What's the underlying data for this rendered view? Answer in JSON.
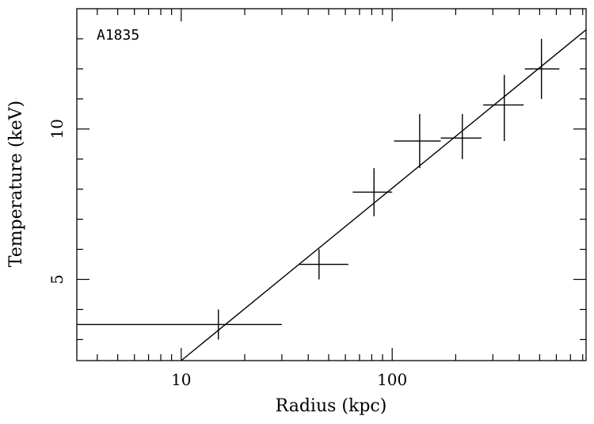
{
  "chart_data": {
    "type": "scatter",
    "annotation": "A1835",
    "xlabel": "Radius (kpc)",
    "ylabel": "Temperature (keV)",
    "xscale": "log",
    "yscale": "linear",
    "xlim": [
      3.2,
      830
    ],
    "ylim": [
      2.3,
      14.0
    ],
    "grid": false,
    "x_tick_labels": [
      {
        "value": 10,
        "label": "10"
      },
      {
        "value": 100,
        "label": "100"
      }
    ],
    "y_tick_labels": [
      {
        "value": 5,
        "label": "5"
      },
      {
        "value": 10,
        "label": "10"
      }
    ],
    "points": [
      {
        "x": 15,
        "y": 3.5,
        "xlo": 3.2,
        "xhi": 30,
        "ylo": 3.0,
        "yhi": 4.0
      },
      {
        "x": 45,
        "y": 5.5,
        "xlo": 36,
        "xhi": 62,
        "ylo": 5.0,
        "yhi": 6.0
      },
      {
        "x": 82,
        "y": 7.9,
        "xlo": 65,
        "xhi": 100,
        "ylo": 7.1,
        "yhi": 8.7
      },
      {
        "x": 135,
        "y": 9.6,
        "xlo": 102,
        "xhi": 170,
        "ylo": 8.7,
        "yhi": 10.5
      },
      {
        "x": 215,
        "y": 9.7,
        "xlo": 170,
        "xhi": 265,
        "ylo": 9.0,
        "yhi": 10.5
      },
      {
        "x": 340,
        "y": 10.8,
        "xlo": 270,
        "xhi": 420,
        "ylo": 9.6,
        "yhi": 11.8
      },
      {
        "x": 510,
        "y": 12.0,
        "xlo": 425,
        "xhi": 620,
        "ylo": 11.0,
        "yhi": 13.0
      }
    ],
    "fit_line": {
      "x": [
        10,
        830
      ],
      "y": [
        2.3,
        13.3
      ]
    }
  }
}
